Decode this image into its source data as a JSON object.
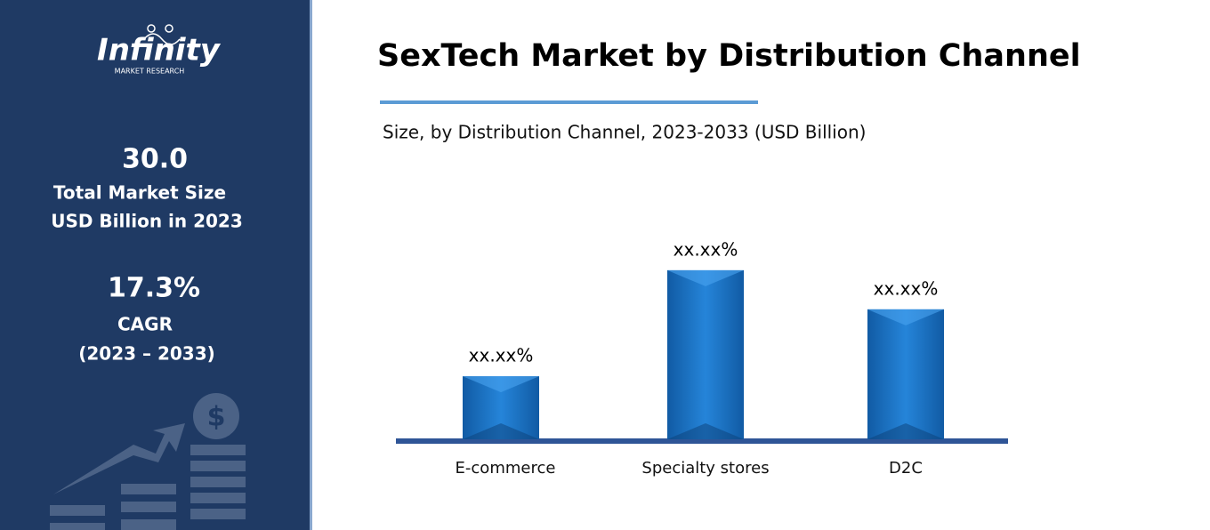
{
  "sidebar": {
    "logo": "Infinity",
    "logo_tagline": "MARKET RESEARCH",
    "market_size": "30.0",
    "market_size_label_1": "Total Market Size",
    "market_size_label_2": "USD Billion in 2023",
    "cagr": "17.3%",
    "cagr_label": "CAGR",
    "cagr_period": "(2023 – 2033)"
  },
  "chart_data": {
    "type": "bar",
    "title": "SexTech Market by Distribution Channel",
    "subtitle": "Size, by Distribution Channel, 2023-2033 (USD Billion)",
    "categories": [
      "E-commerce",
      "Specialty stores",
      "D2C"
    ],
    "values": [
      17.4,
      46.7,
      35.9
    ],
    "value_labels": [
      "xx.xx%",
      "xx.xx%",
      "xx.xx%"
    ],
    "color": "#1a76c9"
  }
}
